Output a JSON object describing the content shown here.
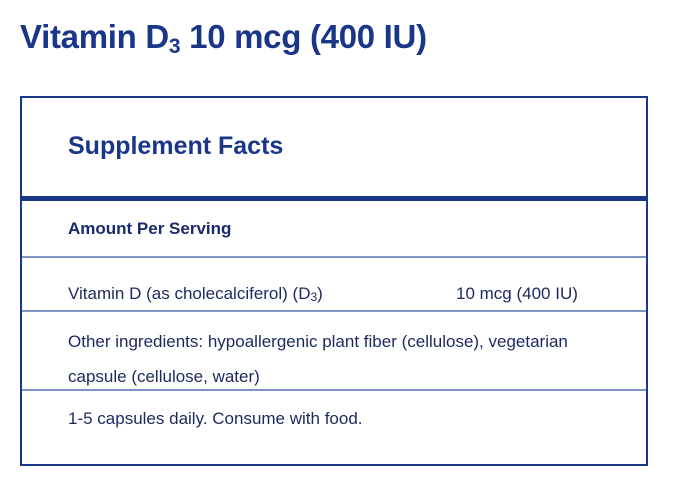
{
  "title": {
    "main": "Vitamin D",
    "subscript": "3",
    "rest": " 10 mcg (400 IU)"
  },
  "facts": {
    "heading": "Supplement Facts",
    "amount_label": "Amount Per Serving",
    "nutrient": {
      "name": "Vitamin D (as cholecalciferol) (D",
      "name_sub": "3",
      "name_end": ")",
      "amount": "10 mcg (400 IU)"
    },
    "other_ingredients": "Other ingredients: hypoallergenic plant fiber (cellulose), vegetarian capsule (cellulose, water)",
    "directions": "1-5 capsules daily. Consume with food."
  },
  "colors": {
    "brand": "#1a3689",
    "divider": "#7f93c4"
  }
}
